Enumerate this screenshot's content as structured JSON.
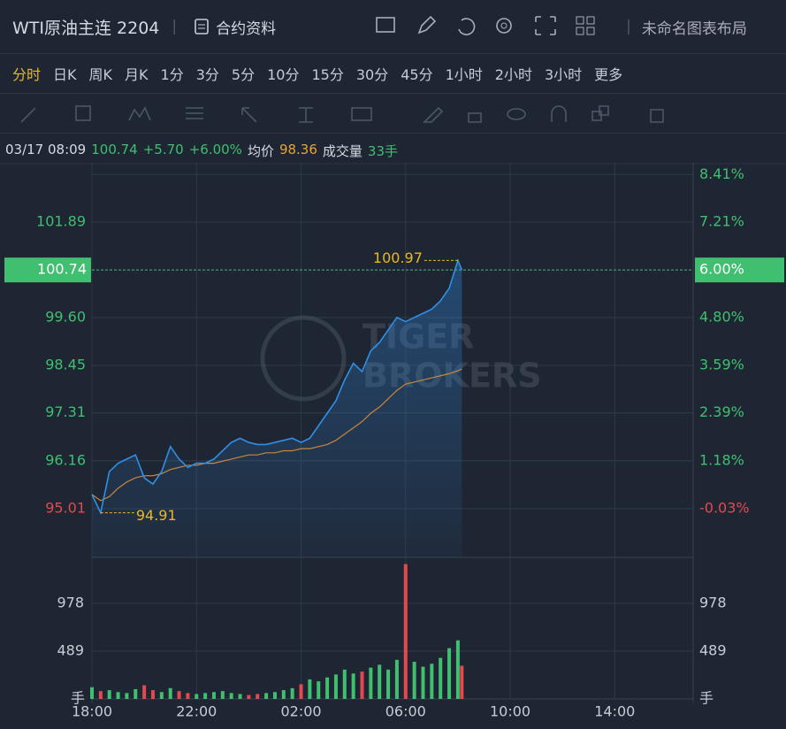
{
  "toolbar": {
    "symbol": "WTI原油主连 2204",
    "info": "合约资料",
    "layout": "未命名图表布局"
  },
  "periods": [
    "分时",
    "日K",
    "周K",
    "月K",
    "1分",
    "3分",
    "5分",
    "10分",
    "15分",
    "30分",
    "45分",
    "1小时",
    "2小时",
    "3小时",
    "更多"
  ],
  "header": {
    "time": "03/17 08:09",
    "price": "100.74",
    "change": "+5.70",
    "change_pct": "+6.00%",
    "avg_label": "均价",
    "avg": "98.36",
    "vol_label": "成交量",
    "vol": "33手"
  },
  "chart_data": {
    "type": "line",
    "watermark": [
      "TIGER",
      "BROKERS"
    ],
    "x": [
      "18:00",
      "18:20",
      "18:40",
      "19:00",
      "19:20",
      "19:40",
      "20:00",
      "20:20",
      "20:40",
      "21:00",
      "21:20",
      "21:40",
      "22:00",
      "22:20",
      "22:40",
      "23:00",
      "23:20",
      "23:40",
      "00:00",
      "00:20",
      "00:40",
      "01:00",
      "01:20",
      "01:40",
      "02:00",
      "02:20",
      "02:40",
      "03:00",
      "03:20",
      "03:40",
      "04:00",
      "04:20",
      "04:40",
      "05:00",
      "05:20",
      "05:40",
      "06:00",
      "06:20",
      "06:40",
      "07:00",
      "07:20",
      "07:40",
      "08:00",
      "08:09"
    ],
    "xlim": [
      "18:00",
      "17:00"
    ],
    "xticks": [
      "18:00",
      "22:00",
      "02:00",
      "06:00",
      "10:00",
      "14:00"
    ],
    "series": [
      {
        "color": "#2f8fe8",
        "values": [
          95.35,
          94.91,
          95.9,
          96.1,
          96.2,
          96.3,
          95.75,
          95.6,
          95.9,
          96.5,
          96.2,
          96.0,
          96.1,
          96.1,
          96.2,
          96.4,
          96.6,
          96.7,
          96.6,
          96.55,
          96.55,
          96.6,
          96.65,
          96.7,
          96.6,
          96.7,
          97.0,
          97.3,
          97.6,
          98.1,
          98.5,
          98.3,
          98.8,
          99.0,
          99.3,
          99.6,
          99.5,
          99.6,
          99.7,
          99.8,
          100.0,
          100.3,
          100.97,
          100.74
        ]
      },
      {
        "color": "#c8873a",
        "values": [
          95.35,
          95.2,
          95.3,
          95.5,
          95.65,
          95.75,
          95.8,
          95.8,
          95.85,
          95.95,
          96.0,
          96.05,
          96.05,
          96.1,
          96.1,
          96.15,
          96.2,
          96.25,
          96.3,
          96.3,
          96.35,
          96.35,
          96.4,
          96.4,
          96.45,
          96.45,
          96.5,
          96.55,
          96.65,
          96.8,
          96.95,
          97.1,
          97.3,
          97.45,
          97.65,
          97.85,
          98.0,
          98.05,
          98.1,
          98.15,
          98.2,
          98.25,
          98.32,
          98.36
        ]
      }
    ],
    "ylim": [
      93.84,
      103.25
    ],
    "yticks": [
      95.01,
      96.16,
      97.31,
      98.45,
      {
        "value": 99.6,
        "label": "99.60"
      },
      101.89
    ],
    "ytick_colors": [
      "#e5484d",
      "#3fbf6f",
      "#3fbf6f",
      "#3fbf6f",
      "#3fbf6f",
      "#3fbf6f"
    ],
    "y2lim": [
      -1.26,
      8.64
    ],
    "y2ticks": [
      {
        "value": -0.03,
        "label": "-0.03%"
      },
      {
        "value": 1.18,
        "label": "1.18%"
      },
      {
        "value": 2.39,
        "label": "2.39%"
      },
      {
        "value": 3.59,
        "label": "3.59%"
      },
      {
        "value": 4.8,
        "label": "4.80%"
      },
      {
        "value": 7.21,
        "label": "7.21%"
      },
      {
        "value": 8.41,
        "label": "8.41%"
      }
    ],
    "y2tick_colors": [
      "#e5484d",
      "#3fbf6f",
      "#3fbf6f",
      "#3fbf6f",
      "#3fbf6f",
      "#3fbf6f",
      "#3fbf6f"
    ],
    "current_price": 100.74,
    "current_change": {
      "value": 6.0,
      "label": "6.00%"
    },
    "volume": [
      120,
      80,
      90,
      70,
      60,
      100,
      140,
      90,
      70,
      110,
      80,
      60,
      50,
      60,
      70,
      80,
      60,
      50,
      40,
      50,
      60,
      70,
      90,
      110,
      150,
      200,
      180,
      220,
      250,
      300,
      260,
      280,
      320,
      350,
      300,
      400,
      1380,
      380,
      330,
      360,
      420,
      520,
      600,
      340
    ],
    "volume_lim": [
      0,
      1449
    ],
    "volume_ticks": [
      489,
      978
    ],
    "volume_unit": "手",
    "up_color": "#3fbf6f",
    "down_color": "#e5484d"
  }
}
